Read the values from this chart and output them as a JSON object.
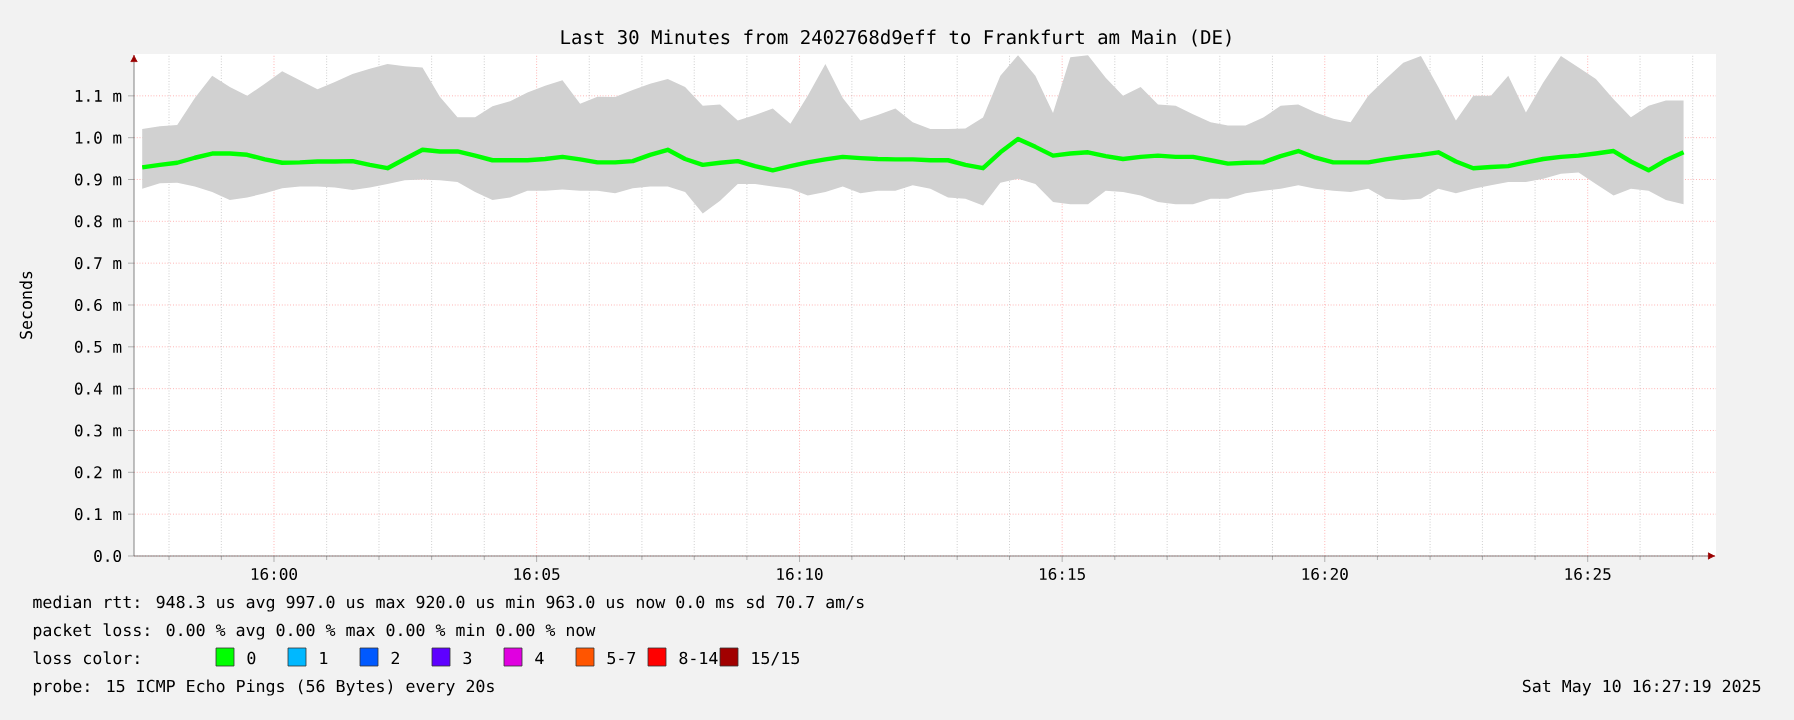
{
  "chart_data": {
    "type": "line",
    "title": "Last 30 Minutes from 2402768d9eff to Frankfurt am Main (DE)",
    "ylabel": "Seconds",
    "annotations": [
      "median rtt:  948.3 us avg  997.0 us max  920.0 us min  963.0 us now  0.0 ms sd  70.7   am/s",
      "packet loss: 0.00 % avg  0.00 % max  0.00 % min  0.00 % now",
      "loss color:",
      "0",
      "1",
      "2",
      "3",
      "4",
      "5-7",
      "8-14",
      "15/15",
      "probe:       15 ICMP Echo Pings (56 Bytes) every 20s",
      "Sat May 10 16:27:19 2025"
    ],
    "x": [
      15.9582,
      15.9638,
      15.9693,
      15.9749,
      15.9804,
      15.986,
      15.9915,
      15.9971,
      16.0026,
      16.0082,
      16.0138,
      16.0193,
      16.0249,
      16.0304,
      16.036,
      16.0415,
      16.0471,
      16.0526,
      16.0582,
      16.0638,
      16.0693,
      16.0749,
      16.0804,
      16.086,
      16.0915,
      16.0971,
      16.1026,
      16.1082,
      16.1138,
      16.1193,
      16.1249,
      16.1304,
      16.136,
      16.1415,
      16.1471,
      16.1526,
      16.1582,
      16.1638,
      16.1693,
      16.1749,
      16.1804,
      16.186,
      16.1915,
      16.1971,
      16.2026,
      16.2082,
      16.2138,
      16.2193,
      16.2249,
      16.2304,
      16.236,
      16.2415,
      16.2471,
      16.2526,
      16.2582,
      16.2638,
      16.2693,
      16.2749,
      16.2804,
      16.286,
      16.2915,
      16.2971,
      16.3026,
      16.3082,
      16.3138,
      16.3193,
      16.3249,
      16.3304,
      16.336,
      16.3415,
      16.3471,
      16.3526,
      16.3582,
      16.3638,
      16.3693,
      16.3749,
      16.3804,
      16.386,
      16.3915,
      16.3971,
      16.4026,
      16.4082,
      16.4138,
      16.4193,
      16.4249,
      16.4304,
      16.436,
      16.4415,
      16.4471
    ],
    "series": [
      {
        "color": "#00ff00",
        "values": [
          0.929,
          0.935,
          0.94,
          0.952,
          0.962,
          0.962,
          0.959,
          0.948,
          0.94,
          0.941,
          0.943,
          0.943,
          0.944,
          0.935,
          0.927,
          0.949,
          0.971,
          0.967,
          0.967,
          0.957,
          0.946,
          0.946,
          0.946,
          0.949,
          0.954,
          0.948,
          0.941,
          0.941,
          0.944,
          0.959,
          0.971,
          0.949,
          0.935,
          0.94,
          0.944,
          0.932,
          0.922,
          0.932,
          0.941,
          0.948,
          0.954,
          0.951,
          0.949,
          0.948,
          0.948,
          0.946,
          0.946,
          0.935,
          0.927,
          0.965,
          0.997,
          0.978,
          0.957,
          0.962,
          0.965,
          0.956,
          0.949,
          0.954,
          0.957,
          0.954,
          0.954,
          0.946,
          0.938,
          0.94,
          0.941,
          0.956,
          0.968,
          0.952,
          0.941,
          0.941,
          0.941,
          0.948,
          0.954,
          0.959,
          0.965,
          0.943,
          0.927,
          0.93,
          0.932,
          0.941,
          0.949,
          0.954,
          0.957,
          0.962,
          0.968,
          0.943,
          0.922,
          0.946,
          0.965
        ],
        "upper": [
          1.021,
          1.027,
          1.03,
          1.095,
          1.148,
          1.121,
          1.1,
          1.129,
          1.159,
          1.137,
          1.116,
          1.133,
          1.152,
          1.165,
          1.176,
          1.171,
          1.168,
          1.098,
          1.049,
          1.049,
          1.075,
          1.087,
          1.108,
          1.124,
          1.137,
          1.081,
          1.098,
          1.097,
          1.114,
          1.129,
          1.14,
          1.121,
          1.076,
          1.079,
          1.041,
          1.054,
          1.07,
          1.033,
          1.1,
          1.176,
          1.095,
          1.041,
          1.054,
          1.07,
          1.037,
          1.021,
          1.021,
          1.022,
          1.048,
          1.148,
          1.197,
          1.148,
          1.059,
          1.192,
          1.197,
          1.143,
          1.1,
          1.121,
          1.079,
          1.076,
          1.056,
          1.037,
          1.029,
          1.029,
          1.048,
          1.076,
          1.079,
          1.06,
          1.045,
          1.037,
          1.1,
          1.14,
          1.179,
          1.195,
          1.121,
          1.041,
          1.1,
          1.1,
          1.148,
          1.06,
          1.132,
          1.195,
          1.168,
          1.14,
          1.092,
          1.049,
          1.076,
          1.089,
          1.089
        ],
        "lower": [
          0.878,
          0.891,
          0.892,
          0.883,
          0.87,
          0.851,
          0.857,
          0.867,
          0.879,
          0.883,
          0.883,
          0.881,
          0.875,
          0.881,
          0.889,
          0.898,
          0.9,
          0.898,
          0.894,
          0.87,
          0.851,
          0.857,
          0.873,
          0.873,
          0.876,
          0.873,
          0.873,
          0.867,
          0.879,
          0.883,
          0.883,
          0.87,
          0.819,
          0.849,
          0.889,
          0.889,
          0.883,
          0.878,
          0.862,
          0.87,
          0.883,
          0.867,
          0.873,
          0.873,
          0.886,
          0.878,
          0.857,
          0.854,
          0.838,
          0.892,
          0.902,
          0.889,
          0.846,
          0.841,
          0.841,
          0.873,
          0.87,
          0.862,
          0.846,
          0.841,
          0.841,
          0.854,
          0.854,
          0.867,
          0.873,
          0.878,
          0.886,
          0.878,
          0.873,
          0.87,
          0.878,
          0.854,
          0.851,
          0.854,
          0.878,
          0.867,
          0.878,
          0.886,
          0.894,
          0.894,
          0.902,
          0.914,
          0.917,
          0.889,
          0.862,
          0.878,
          0.873,
          0.851,
          0.841
        ]
      }
    ],
    "xlim": [
      15.9556,
      16.4574
    ],
    "ylim": [
      0,
      1.2
    ],
    "xticks": [
      {
        "value": 15.9667,
        "label": null
      },
      {
        "value": 15.9833,
        "label": null
      },
      {
        "value": 16.0,
        "label": "16:00"
      },
      {
        "value": 16.0167,
        "label": null
      },
      {
        "value": 16.0333,
        "label": null
      },
      {
        "value": 16.05,
        "label": null
      },
      {
        "value": 16.0667,
        "label": null
      },
      {
        "value": 16.0833,
        "label": "16:05"
      },
      {
        "value": 16.1,
        "label": null
      },
      {
        "value": 16.1167,
        "label": null
      },
      {
        "value": 16.1333,
        "label": null
      },
      {
        "value": 16.15,
        "label": null
      },
      {
        "value": 16.1667,
        "label": "16:10"
      },
      {
        "value": 16.1833,
        "label": null
      },
      {
        "value": 16.2,
        "label": null
      },
      {
        "value": 16.2167,
        "label": null
      },
      {
        "value": 16.2333,
        "label": null
      },
      {
        "value": 16.25,
        "label": "16:15"
      },
      {
        "value": 16.2667,
        "label": null
      },
      {
        "value": 16.2833,
        "label": null
      },
      {
        "value": 16.3,
        "label": null
      },
      {
        "value": 16.3167,
        "label": null
      },
      {
        "value": 16.3333,
        "label": "16:20"
      },
      {
        "value": 16.35,
        "label": null
      },
      {
        "value": 16.3667,
        "label": null
      },
      {
        "value": 16.3833,
        "label": null
      },
      {
        "value": 16.4,
        "label": null
      },
      {
        "value": 16.4167,
        "label": "16:25"
      },
      {
        "value": 16.4333,
        "label": null
      },
      {
        "value": 16.45,
        "label": null
      }
    ],
    "yticks": [
      {
        "value": 0.0,
        "label": "0.0"
      },
      {
        "value": 0.1,
        "label": "0.1 m"
      },
      {
        "value": 0.2,
        "label": "0.2 m"
      },
      {
        "value": 0.3,
        "label": "0.3 m"
      },
      {
        "value": 0.4,
        "label": "0.4 m"
      },
      {
        "value": 0.5,
        "label": "0.5 m"
      },
      {
        "value": 0.6,
        "label": "0.6 m"
      },
      {
        "value": 0.7,
        "label": "0.7 m"
      },
      {
        "value": 0.8,
        "label": "0.8 m"
      },
      {
        "value": 0.9,
        "label": "0.9 m"
      },
      {
        "value": 1.0,
        "label": "1.0 m"
      },
      {
        "value": 1.1,
        "label": "1.1 m"
      }
    ],
    "grid": true
  }
}
